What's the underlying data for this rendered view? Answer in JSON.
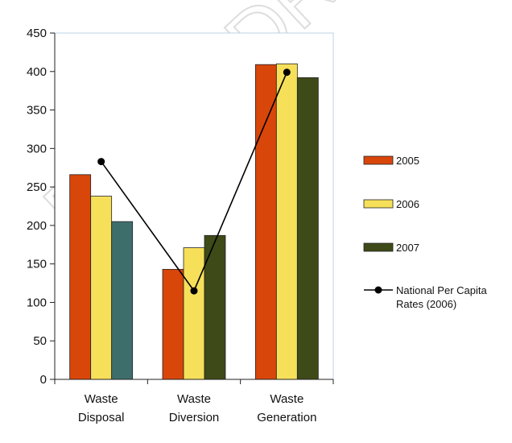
{
  "watermark": "FINAL DRAFT",
  "chart_data": {
    "type": "bar",
    "categories": [
      [
        "Waste",
        "Disposal"
      ],
      [
        "Waste",
        "Diversion"
      ],
      [
        "Waste",
        "Generation"
      ]
    ],
    "series": [
      {
        "name": "2005",
        "type": "bar",
        "values": [
          266,
          143,
          409
        ],
        "color": "#d9460a"
      },
      {
        "name": "2006",
        "type": "bar",
        "values": [
          238,
          171,
          410
        ],
        "color": "#f6e05a"
      },
      {
        "name": "2007",
        "type": "bar",
        "values": [
          205,
          187,
          392
        ],
        "color": "#3e4a17",
        "point_colors": [
          "#3e6e6c",
          "#3e4a17",
          "#3e4a17"
        ]
      },
      {
        "name": "National Per Capita Rates (2006)",
        "type": "line",
        "values": [
          283,
          115,
          399
        ],
        "color": "#000000"
      }
    ],
    "ylim": [
      0,
      450
    ],
    "yticks": [
      0,
      50,
      100,
      150,
      200,
      250,
      300,
      350,
      400,
      450
    ],
    "grid": false,
    "legend_position": "right",
    "title": "",
    "xlabel": "",
    "ylabel": ""
  }
}
